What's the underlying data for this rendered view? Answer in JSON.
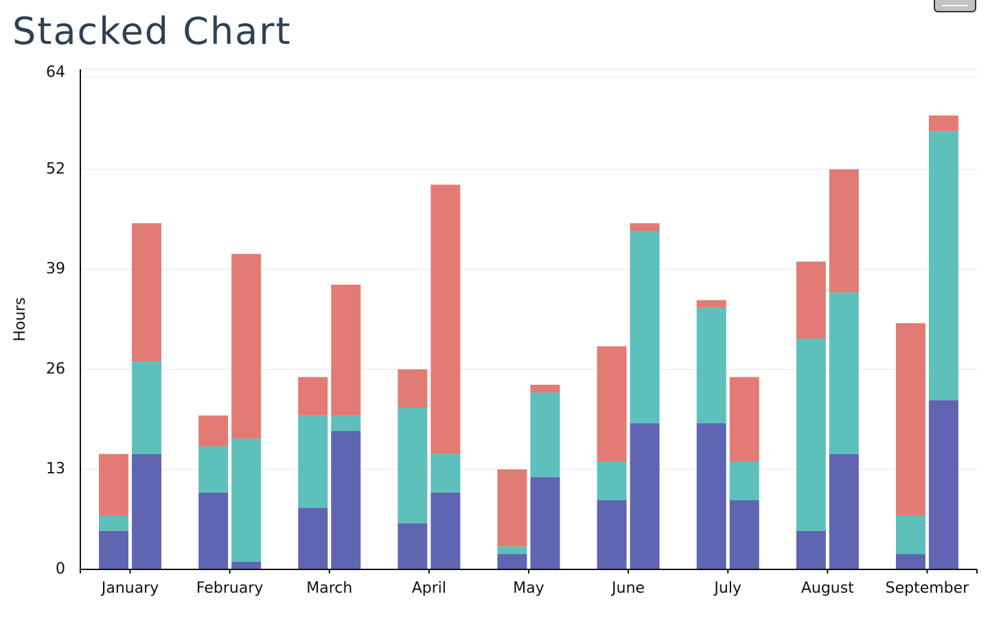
{
  "chart_data": {
    "type": "bar",
    "stacked": true,
    "title": "Stacked Chart",
    "xlabel": "",
    "ylabel": "Hours",
    "ylim": [
      0,
      65
    ],
    "yticks": [
      0,
      13,
      26,
      39,
      52,
      64
    ],
    "grid": true,
    "legend": "none",
    "categories": [
      "January",
      "February",
      "March",
      "April",
      "May",
      "June",
      "July",
      "August",
      "September"
    ],
    "bar_groups": [
      {
        "series": [
          {
            "color": "#5f65b1",
            "values": [
              5,
              10,
              8,
              6,
              2,
              9,
              19,
              5,
              2
            ]
          },
          {
            "color": "#5dc0bb",
            "values": [
              2,
              6,
              12,
              15,
              1,
              5,
              15,
              25,
              5
            ]
          },
          {
            "color": "#e27b73",
            "values": [
              8,
              4,
              5,
              5,
              10,
              15,
              1,
              10,
              25
            ]
          }
        ]
      },
      {
        "series": [
          {
            "color": "#5f65b1",
            "values": [
              15,
              1,
              18,
              10,
              12,
              19,
              9,
              15,
              22
            ]
          },
          {
            "color": "#5dc0bb",
            "values": [
              12,
              16,
              2,
              5,
              11,
              25,
              5,
              21,
              35
            ]
          },
          {
            "color": "#e27b73",
            "values": [
              18,
              24,
              17,
              35,
              1,
              1,
              11,
              16,
              2
            ]
          }
        ]
      }
    ]
  },
  "menu": {
    "icon": "hamburger-menu-icon"
  }
}
